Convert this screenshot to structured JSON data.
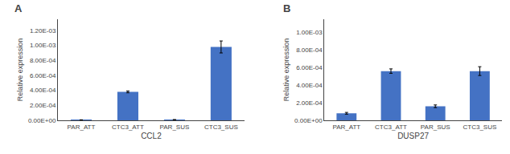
{
  "chart_data": [
    {
      "type": "bar",
      "title": "A",
      "xlabel": "CCL2",
      "ylabel": "Relative expression",
      "categories": [
        "PAR_ATT",
        "CTC3_ATT",
        "PAR_SUS",
        "CTC3_SUS"
      ],
      "values": [
        5e-06,
        0.00038,
        8e-06,
        0.00098
      ],
      "errors": [
        2e-06,
        1.2e-05,
        2e-06,
        8e-05
      ],
      "color": "#4472C4",
      "ylim": [
        0,
        0.00135
      ],
      "yticks": [
        {
          "value": 0,
          "label": "0.00E+00"
        },
        {
          "value": 0.0002,
          "label": "2.00E-04"
        },
        {
          "value": 0.0004,
          "label": "4.00E-04"
        },
        {
          "value": 0.0006,
          "label": "6.00E-04"
        },
        {
          "value": 0.0008,
          "label": "8.00E-04"
        },
        {
          "value": 0.001,
          "label": "1.00E-03"
        },
        {
          "value": 0.0012,
          "label": "1.20E-03"
        }
      ],
      "grid": false
    },
    {
      "type": "bar",
      "title": "B",
      "xlabel": "DUSP27",
      "ylabel": "Relative expression",
      "categories": [
        "PAR_ATT",
        "CTC3_ATT",
        "PAR_SUS",
        "CTC3_SUS"
      ],
      "values": [
        8e-05,
        0.00056,
        0.00016,
        0.00056
      ],
      "errors": [
        1e-05,
        2.5e-05,
        1.5e-05,
        5e-05
      ],
      "color": "#4472C4",
      "ylim": [
        0,
        0.00115
      ],
      "yticks": [
        {
          "value": 0,
          "label": "0.00E+00"
        },
        {
          "value": 0.0002,
          "label": "2.00E-04"
        },
        {
          "value": 0.0004,
          "label": "4.00E-04"
        },
        {
          "value": 0.0006,
          "label": "6.00E-04"
        },
        {
          "value": 0.0008,
          "label": "8.00E-04"
        },
        {
          "value": 0.001,
          "label": "1.00E-03"
        }
      ],
      "grid": false
    }
  ]
}
